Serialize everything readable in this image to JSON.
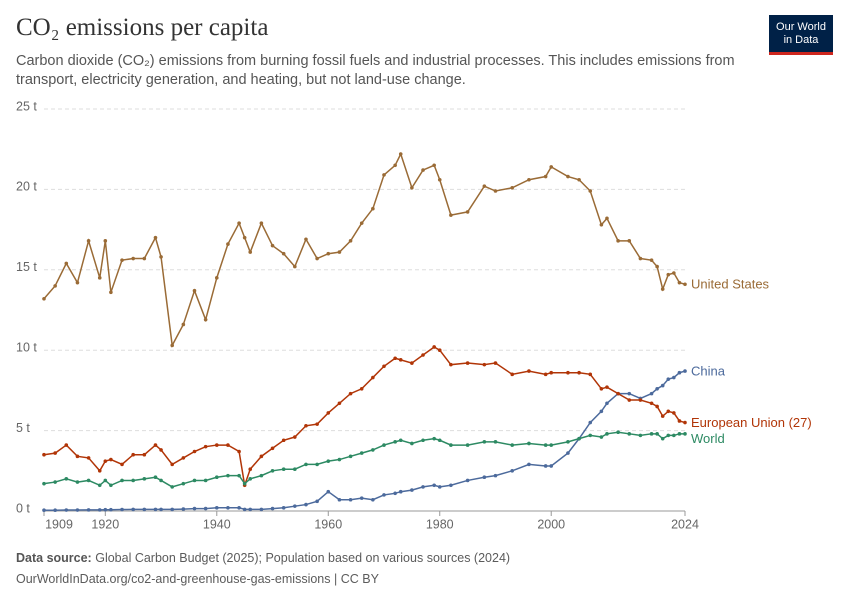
{
  "chart_data": {
    "type": "line",
    "title": "CO₂ emissions per capita",
    "subtitle": "Carbon dioxide (CO₂) emissions from burning fossil fuels and industrial processes. This includes emissions from transport, electricity generation, and heating, but not land-use change.",
    "logo": [
      "Our World",
      "in Data"
    ],
    "source_label": "Data source:",
    "source": "Global Carbon Budget (2025); Population based on various sources (2024)",
    "url": "OurWorldInData.org/co2-and-greenhouse-gas-emissions | CC BY",
    "x": [
      1909,
      1911,
      1913,
      1915,
      1917,
      1919,
      1920,
      1921,
      1923,
      1925,
      1927,
      1929,
      1930,
      1932,
      1934,
      1936,
      1938,
      1940,
      1942,
      1944,
      1945,
      1946,
      1948,
      1950,
      1952,
      1954,
      1956,
      1958,
      1960,
      1962,
      1964,
      1966,
      1968,
      1970,
      1972,
      1973,
      1975,
      1977,
      1979,
      1980,
      1982,
      1985,
      1988,
      1990,
      1993,
      1996,
      1999,
      2000,
      2003,
      2005,
      2007,
      2009,
      2010,
      2012,
      2014,
      2016,
      2018,
      2019,
      2020,
      2021,
      2022,
      2023,
      2024
    ],
    "xlim": [
      1909,
      2024
    ],
    "xticks": [
      1909,
      1920,
      1940,
      1960,
      1980,
      2000,
      2024
    ],
    "ylim": [
      0,
      25
    ],
    "yticks": [
      {
        "value": 0,
        "label": "0 t"
      },
      {
        "value": 5,
        "label": "5 t"
      },
      {
        "value": 10,
        "label": "10 t"
      },
      {
        "value": 15,
        "label": "15 t"
      },
      {
        "value": 20,
        "label": "20 t"
      },
      {
        "value": 25,
        "label": "25 t"
      }
    ],
    "grid": true,
    "series": [
      {
        "name": "United States",
        "color": "#9a6b36",
        "values": [
          13.2,
          14.0,
          15.4,
          14.2,
          16.8,
          14.5,
          16.8,
          13.6,
          15.6,
          15.7,
          15.7,
          17.0,
          15.8,
          10.3,
          11.6,
          13.7,
          11.9,
          14.5,
          16.6,
          17.9,
          17.0,
          16.1,
          17.9,
          16.5,
          16.0,
          15.2,
          16.9,
          15.7,
          16.0,
          16.1,
          16.8,
          17.9,
          18.8,
          20.9,
          21.5,
          22.2,
          20.1,
          21.2,
          21.5,
          20.6,
          18.4,
          18.6,
          20.2,
          19.9,
          20.1,
          20.6,
          20.8,
          21.4,
          20.8,
          20.6,
          19.9,
          17.8,
          18.2,
          16.8,
          16.8,
          15.7,
          15.6,
          15.2,
          13.8,
          14.7,
          14.8,
          14.2,
          14.1
        ]
      },
      {
        "name": "China",
        "color": "#4c6a9c",
        "values": [
          0.05,
          0.05,
          0.06,
          0.06,
          0.07,
          0.07,
          0.08,
          0.08,
          0.09,
          0.1,
          0.1,
          0.1,
          0.1,
          0.1,
          0.12,
          0.15,
          0.15,
          0.2,
          0.2,
          0.2,
          0.1,
          0.1,
          0.1,
          0.15,
          0.2,
          0.3,
          0.4,
          0.6,
          1.2,
          0.7,
          0.7,
          0.8,
          0.7,
          1.0,
          1.1,
          1.2,
          1.3,
          1.5,
          1.6,
          1.5,
          1.6,
          1.9,
          2.1,
          2.2,
          2.5,
          2.9,
          2.8,
          2.8,
          3.6,
          4.5,
          5.5,
          6.2,
          6.7,
          7.3,
          7.3,
          7.0,
          7.3,
          7.6,
          7.8,
          8.2,
          8.3,
          8.6,
          8.7
        ]
      },
      {
        "name": "European Union (27)",
        "color": "#b13507",
        "values": [
          3.5,
          3.6,
          4.1,
          3.4,
          3.3,
          2.5,
          3.1,
          3.2,
          2.9,
          3.5,
          3.5,
          4.1,
          3.8,
          2.9,
          3.3,
          3.7,
          4.0,
          4.1,
          4.1,
          3.7,
          1.6,
          2.6,
          3.4,
          3.9,
          4.4,
          4.6,
          5.3,
          5.4,
          6.1,
          6.7,
          7.3,
          7.6,
          8.3,
          9.0,
          9.5,
          9.4,
          9.2,
          9.7,
          10.2,
          10.0,
          9.1,
          9.2,
          9.1,
          9.2,
          8.5,
          8.7,
          8.5,
          8.6,
          8.6,
          8.6,
          8.5,
          7.6,
          7.7,
          7.3,
          6.9,
          6.9,
          6.7,
          6.5,
          5.9,
          6.2,
          6.1,
          5.6,
          5.5
        ]
      },
      {
        "name": "World",
        "color": "#2d8a63",
        "values": [
          1.7,
          1.8,
          2.0,
          1.8,
          1.9,
          1.6,
          1.9,
          1.6,
          1.9,
          1.9,
          2.0,
          2.1,
          1.9,
          1.5,
          1.7,
          1.9,
          1.9,
          2.1,
          2.2,
          2.2,
          1.7,
          2.0,
          2.2,
          2.5,
          2.6,
          2.6,
          2.9,
          2.9,
          3.1,
          3.2,
          3.4,
          3.6,
          3.8,
          4.1,
          4.3,
          4.4,
          4.2,
          4.4,
          4.5,
          4.4,
          4.1,
          4.1,
          4.3,
          4.3,
          4.1,
          4.2,
          4.1,
          4.1,
          4.3,
          4.5,
          4.7,
          4.6,
          4.8,
          4.9,
          4.8,
          4.7,
          4.8,
          4.8,
          4.5,
          4.7,
          4.7,
          4.8,
          4.8
        ]
      }
    ]
  }
}
